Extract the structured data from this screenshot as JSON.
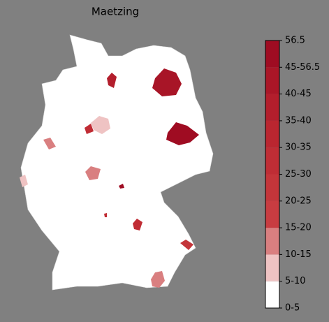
{
  "title": "Maetzing",
  "colorbar": {
    "ticks": [
      "0-5",
      "5-10",
      "10-15",
      "15-20",
      "20-25",
      "25-30",
      "30-35",
      "35-40",
      "40-45",
      "45-56.5",
      "56.5"
    ],
    "colors": [
      "#ffffff",
      "#efc3c3",
      "#d97f80",
      "#c83c41",
      "#c4353a",
      "#bf2d35",
      "#ba2630",
      "#b31e2c",
      "#aa1627",
      "#9f0c22"
    ]
  }
}
